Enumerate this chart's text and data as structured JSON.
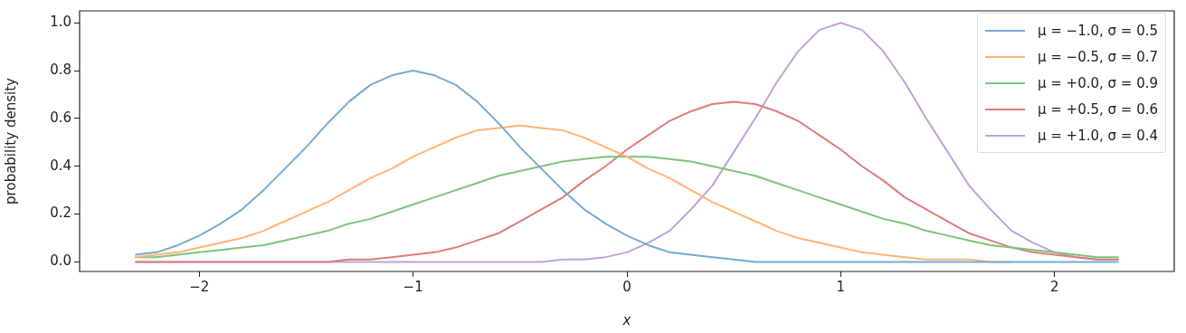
{
  "chart_data": {
    "type": "line",
    "xlabel": "x",
    "ylabel": "probability density",
    "x": [
      -2.3,
      -2.2,
      -2.1,
      -2.0,
      -1.9,
      -1.8,
      -1.7,
      -1.6,
      -1.5,
      -1.4,
      -1.3,
      -1.2,
      -1.1,
      -1.0,
      -0.9,
      -0.8,
      -0.7,
      -0.6,
      -0.5,
      -0.4,
      -0.3,
      -0.2,
      -0.1,
      0,
      0.1,
      0.2,
      0.3,
      0.4,
      0.5,
      0.6,
      0.7,
      0.8,
      0.9,
      1.0,
      1.1,
      1.2,
      1.3,
      1.4,
      1.5,
      1.6,
      1.7,
      1.8,
      1.9,
      2.0,
      2.1,
      2.2,
      2.3
    ],
    "series": [
      {
        "name": "μ = −1.0, σ = 0.5",
        "color": "#77aad4",
        "values": [
          0.03,
          0.04,
          0.07,
          0.11,
          0.16,
          0.22,
          0.3,
          0.39,
          0.48,
          0.58,
          0.67,
          0.74,
          0.78,
          0.8,
          0.78,
          0.74,
          0.67,
          0.58,
          0.48,
          0.39,
          0.3,
          0.22,
          0.16,
          0.11,
          0.07,
          0.04,
          0.03,
          0.02,
          0.01,
          0,
          0,
          0,
          0,
          0,
          0,
          0,
          0,
          0,
          0,
          0,
          0,
          0,
          0,
          0,
          0,
          0,
          0
        ]
      },
      {
        "name": "μ = −0.5, σ = 0.7",
        "color": "#ffb574",
        "values": [
          0.02,
          0.03,
          0.04,
          0.06,
          0.08,
          0.1,
          0.13,
          0.17,
          0.21,
          0.25,
          0.3,
          0.35,
          0.39,
          0.44,
          0.48,
          0.52,
          0.55,
          0.56,
          0.57,
          0.56,
          0.55,
          0.52,
          0.48,
          0.44,
          0.39,
          0.35,
          0.3,
          0.25,
          0.21,
          0.17,
          0.13,
          0.1,
          0.08,
          0.06,
          0.04,
          0.03,
          0.02,
          0.01,
          0.01,
          0.01,
          0,
          0,
          null,
          null,
          null,
          null,
          null
        ]
      },
      {
        "name": "μ = +0.0, σ = 0.9",
        "color": "#7cc47c",
        "values": [
          0.02,
          0.02,
          0.03,
          0.04,
          0.05,
          0.06,
          0.07,
          0.09,
          0.11,
          0.13,
          0.16,
          0.18,
          0.21,
          0.24,
          0.27,
          0.3,
          0.33,
          0.36,
          0.38,
          0.4,
          0.42,
          0.43,
          0.44,
          0.44,
          0.44,
          0.43,
          0.42,
          0.4,
          0.38,
          0.36,
          0.33,
          0.3,
          0.27,
          0.24,
          0.21,
          0.18,
          0.16,
          0.13,
          0.11,
          0.09,
          0.07,
          0.06,
          0.05,
          0.04,
          0.03,
          0.02,
          0.02
        ]
      },
      {
        "name": "μ = +0.5, σ = 0.6",
        "color": "#e07b7b",
        "values": [
          0,
          0,
          0,
          0,
          0,
          0,
          0,
          0,
          0,
          0,
          0.01,
          0.01,
          0.02,
          0.03,
          0.04,
          0.06,
          0.09,
          0.12,
          0.17,
          0.22,
          0.27,
          0.34,
          0.4,
          0.47,
          0.53,
          0.59,
          0.63,
          0.66,
          0.67,
          0.66,
          0.63,
          0.59,
          0.53,
          0.47,
          0.4,
          0.34,
          0.27,
          0.22,
          0.17,
          0.12,
          0.09,
          0.06,
          0.04,
          0.03,
          0.02,
          0.01,
          0.01
        ]
      },
      {
        "name": "μ = +1.0, σ = 0.4",
        "color": "#bfa3d6",
        "values": [
          0,
          0,
          0,
          0,
          0,
          0,
          0,
          0,
          0,
          0,
          0,
          0,
          0,
          0,
          0,
          0,
          0,
          0,
          0,
          0,
          0.01,
          0.01,
          0.02,
          0.04,
          0.08,
          0.13,
          0.22,
          0.32,
          0.46,
          0.6,
          0.75,
          0.88,
          0.97,
          1.0,
          0.97,
          0.88,
          0.75,
          0.6,
          0.46,
          0.32,
          0.22,
          0.13,
          0.08,
          0.04,
          0.02,
          0.01,
          0.01
        ]
      }
    ],
    "xlim": [
      -2.56,
      2.56
    ],
    "xticks": [
      -2,
      -1,
      0,
      1,
      2
    ],
    "ylim": [
      -0.04,
      1.05
    ],
    "yticks": [
      {
        "value": 0,
        "label": "0.0"
      },
      {
        "value": 0.2,
        "label": "0.2"
      },
      {
        "value": 0.4,
        "label": "0.4"
      },
      {
        "value": 0.6,
        "label": "0.6"
      },
      {
        "value": 0.8,
        "label": "0.8"
      },
      {
        "value": 1,
        "label": "1.0"
      }
    ],
    "legend": "top right",
    "grid": false,
    "marker": "none",
    "line_style": "solid"
  }
}
